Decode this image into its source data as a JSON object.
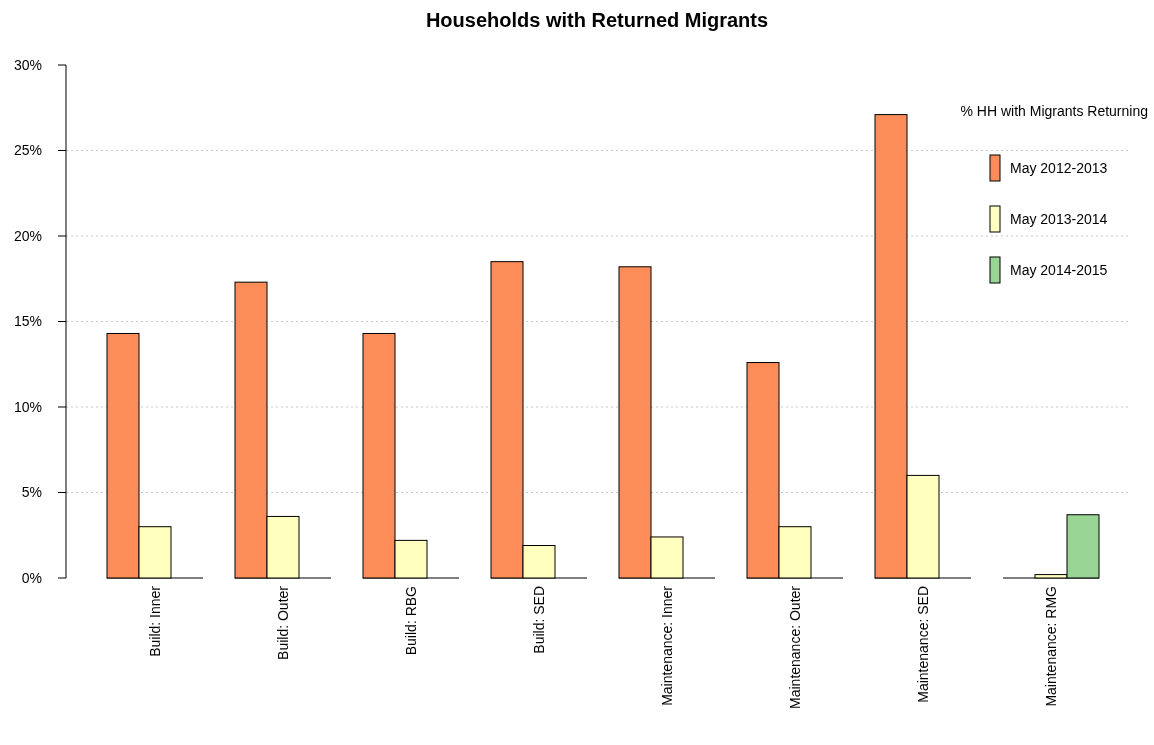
{
  "chart_data": {
    "type": "bar",
    "title": "Households with Returned Migrants",
    "legend_title": "% HH with Migrants Returning",
    "categories": [
      "Build: Inner",
      "Build: Outer",
      "Build: RBG",
      "Build: SED",
      "Maintenance: Inner",
      "Maintenance: Outer",
      "Maintenance: SED",
      "Maintenance: RMG"
    ],
    "series": [
      {
        "name": "May 2012-2013",
        "color": "#fc8d59",
        "values": [
          14.3,
          17.3,
          14.3,
          18.5,
          18.2,
          12.6,
          27.1,
          0
        ]
      },
      {
        "name": "May 2013-2014",
        "color": "#ffffbf",
        "values": [
          3.0,
          3.6,
          2.2,
          1.9,
          2.4,
          3.0,
          6.0,
          0.2
        ]
      },
      {
        "name": "May 2014-2015",
        "color": "#99d594",
        "values": [
          null,
          null,
          null,
          null,
          null,
          null,
          null,
          3.7
        ]
      }
    ],
    "ylim": [
      0,
      30
    ],
    "yticks": [
      {
        "value": 0,
        "label": "0%"
      },
      {
        "value": 5,
        "label": "5%"
      },
      {
        "value": 10,
        "label": "10%"
      },
      {
        "value": 15,
        "label": "15%"
      },
      {
        "value": 20,
        "label": "20%"
      },
      {
        "value": 25,
        "label": "25%"
      },
      {
        "value": 30,
        "label": "30%"
      }
    ],
    "grid": "y",
    "legend": "top right"
  }
}
